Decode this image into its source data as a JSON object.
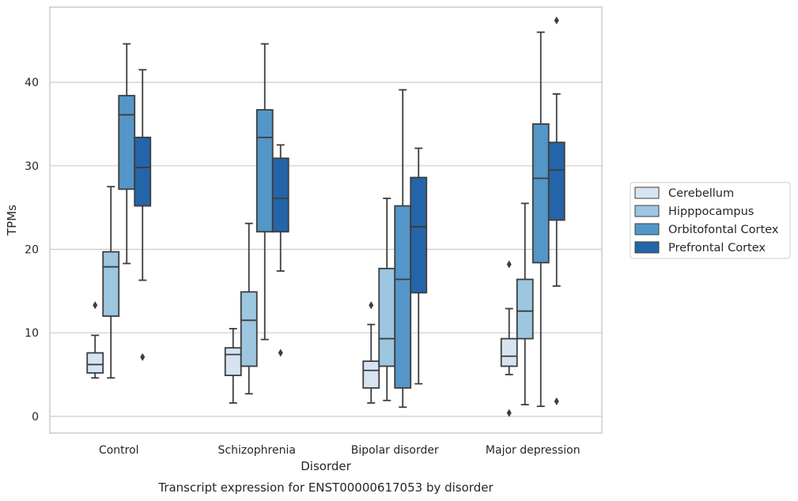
{
  "chart_data": {
    "type": "box",
    "title": "",
    "xlabel": "Disorder",
    "ylabel": "TPMs",
    "caption": "Transcript expression for ENST00000617053 by disorder",
    "ylim": [
      -2,
      49
    ],
    "yticks": [
      0,
      10,
      20,
      30,
      40
    ],
    "grid": "horizontal",
    "legend_position": "right",
    "categories": [
      "Control",
      "Schizophrenia",
      "Bipolar disorder",
      "Major depression"
    ],
    "series": [
      {
        "name": "Cerebellum",
        "color": "#d6e4f2",
        "boxes": [
          {
            "whislo": 4.6,
            "q1": 5.2,
            "med": 6.2,
            "q3": 7.6,
            "whishi": 9.7,
            "fliers": [
              13.3
            ]
          },
          {
            "whislo": 1.6,
            "q1": 4.9,
            "med": 7.4,
            "q3": 8.2,
            "whishi": 10.5,
            "fliers": []
          },
          {
            "whislo": 1.6,
            "q1": 3.4,
            "med": 5.5,
            "q3": 6.6,
            "whishi": 11.0,
            "fliers": [
              13.3
            ]
          },
          {
            "whislo": 5.0,
            "q1": 6.0,
            "med": 7.2,
            "q3": 9.3,
            "whishi": 12.9,
            "fliers": [
              18.2,
              0.4
            ]
          }
        ]
      },
      {
        "name": "Hipppocampus",
        "color": "#9dc6e0",
        "boxes": [
          {
            "whislo": 4.6,
            "q1": 12.0,
            "med": 17.9,
            "q3": 19.7,
            "whishi": 27.5,
            "fliers": []
          },
          {
            "whislo": 2.7,
            "q1": 6.0,
            "med": 11.5,
            "q3": 14.9,
            "whishi": 23.1,
            "fliers": []
          },
          {
            "whislo": 1.9,
            "q1": 6.0,
            "med": 9.3,
            "q3": 17.7,
            "whishi": 26.1,
            "fliers": []
          },
          {
            "whislo": 1.4,
            "q1": 9.3,
            "med": 12.6,
            "q3": 16.4,
            "whishi": 25.5,
            "fliers": []
          }
        ]
      },
      {
        "name": "Orbitofontal Cortex",
        "color": "#5496c7",
        "boxes": [
          {
            "whislo": 18.3,
            "q1": 27.2,
            "med": 36.1,
            "q3": 38.4,
            "whishi": 44.6,
            "fliers": []
          },
          {
            "whislo": 9.2,
            "q1": 22.1,
            "med": 33.4,
            "q3": 36.7,
            "whishi": 44.6,
            "fliers": []
          },
          {
            "whislo": 1.1,
            "q1": 3.4,
            "med": 16.4,
            "q3": 25.2,
            "whishi": 39.1,
            "fliers": []
          },
          {
            "whislo": 1.2,
            "q1": 18.4,
            "med": 28.5,
            "q3": 35.0,
            "whishi": 46.0,
            "fliers": []
          }
        ]
      },
      {
        "name": "Prefrontal Cortex",
        "color": "#2465a9",
        "boxes": [
          {
            "whislo": 16.3,
            "q1": 25.2,
            "med": 29.8,
            "q3": 33.4,
            "whishi": 41.5,
            "fliers": [
              7.1
            ]
          },
          {
            "whislo": 17.4,
            "q1": 22.1,
            "med": 26.1,
            "q3": 30.9,
            "whishi": 32.5,
            "fliers": [
              7.6
            ]
          },
          {
            "whislo": 3.9,
            "q1": 14.8,
            "med": 22.7,
            "q3": 28.6,
            "whishi": 32.1,
            "fliers": []
          },
          {
            "whislo": 15.6,
            "q1": 23.5,
            "med": 29.5,
            "q3": 32.8,
            "whishi": 38.6,
            "fliers": [
              47.4,
              1.8
            ]
          }
        ]
      }
    ]
  }
}
